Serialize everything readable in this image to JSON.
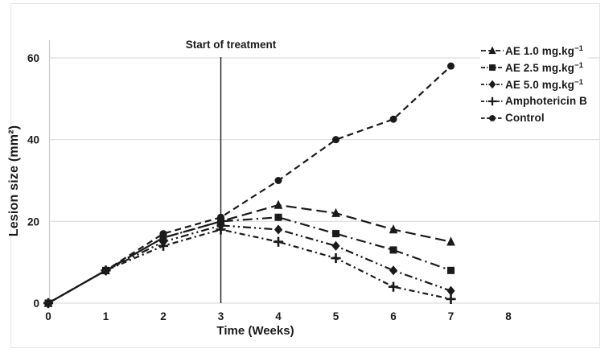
{
  "figure": {
    "background": "#ffffff",
    "ink_color": "#1a1a1a",
    "grid_color": "#dedede",
    "frame_color": "#e3e3e3"
  },
  "chart_data": {
    "type": "line",
    "title": "",
    "xlabel": "Time (Weeks)",
    "ylabel": "Lesion size (mm²)",
    "annotation": "Start of treatment",
    "annotation_x": 3,
    "x": [
      0,
      1,
      2,
      3,
      4,
      5,
      6,
      7
    ],
    "x_ticks": [
      0,
      1,
      2,
      3,
      4,
      5,
      6,
      7,
      8
    ],
    "y_ticks": [
      0,
      20,
      40,
      60
    ],
    "xlim": [
      0,
      8
    ],
    "ylim": [
      0,
      60
    ],
    "grid": "horizontal-only",
    "legend_position": "upper-right",
    "series": [
      {
        "name": "AE 1.0 mg.kg⁻¹",
        "marker": "triangle",
        "line_style": "long-dash",
        "values": [
          0,
          8,
          16,
          20,
          24,
          22,
          18,
          15
        ]
      },
      {
        "name": "AE 2.5 mg.kg⁻¹",
        "marker": "square",
        "line_style": "dash-dot",
        "values": [
          0,
          8,
          16,
          20,
          21,
          17,
          13,
          8
        ]
      },
      {
        "name": "AE 5.0 mg.kg⁻¹",
        "marker": "diamond",
        "line_style": "dash-dot-dot",
        "values": [
          0,
          8,
          15,
          19,
          18,
          14,
          8,
          3
        ]
      },
      {
        "name": "Amphotericin B",
        "marker": "plus",
        "line_style": "short-dash-dot",
        "values": [
          0,
          8,
          14,
          18,
          15,
          11,
          4,
          1
        ]
      },
      {
        "name": "Control",
        "marker": "circle",
        "line_style": "dash",
        "values": [
          0,
          8,
          17,
          21,
          30,
          40,
          45,
          58
        ]
      }
    ]
  }
}
